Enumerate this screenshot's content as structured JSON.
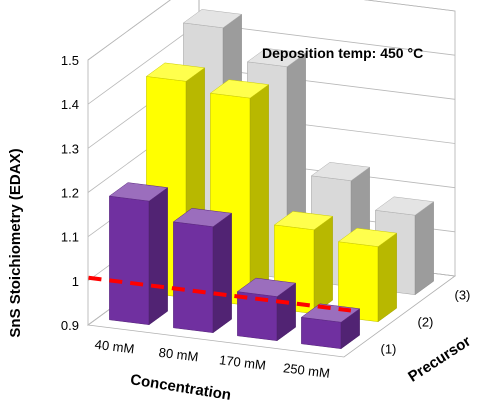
{
  "chart_data": {
    "type": "bar",
    "subtype": "3d-grouped",
    "annotation": "Deposition temp: 450 °C",
    "ylabel": "SnS Stoichiometry (EDAX)",
    "xlabel": "Concentration",
    "zlabel": "Precursor",
    "ylim": [
      0.9,
      1.5
    ],
    "yticks": [
      "0.9",
      "1",
      "1.1",
      "1.2",
      "1.3",
      "1.4",
      "1.5"
    ],
    "categories": [
      "40 mM",
      "80 mM",
      "170 mM",
      "250 mM"
    ],
    "precursors": [
      "(1)",
      "(2)",
      "(3)"
    ],
    "series": [
      {
        "precursor": "(1)",
        "color": "#7030a0",
        "values": [
          1.18,
          1.14,
          1.0,
          0.96
        ]
      },
      {
        "precursor": "(2)",
        "color": "#ffff00",
        "values": [
          1.39,
          1.37,
          1.09,
          1.07
        ]
      },
      {
        "precursor": "(3)",
        "color": "#d9d9d9",
        "values": [
          1.45,
          1.38,
          1.14,
          1.08
        ]
      }
    ],
    "reference_line": {
      "value": 1.0,
      "color": "#ff0000",
      "style": "dashed"
    },
    "grid": true
  }
}
